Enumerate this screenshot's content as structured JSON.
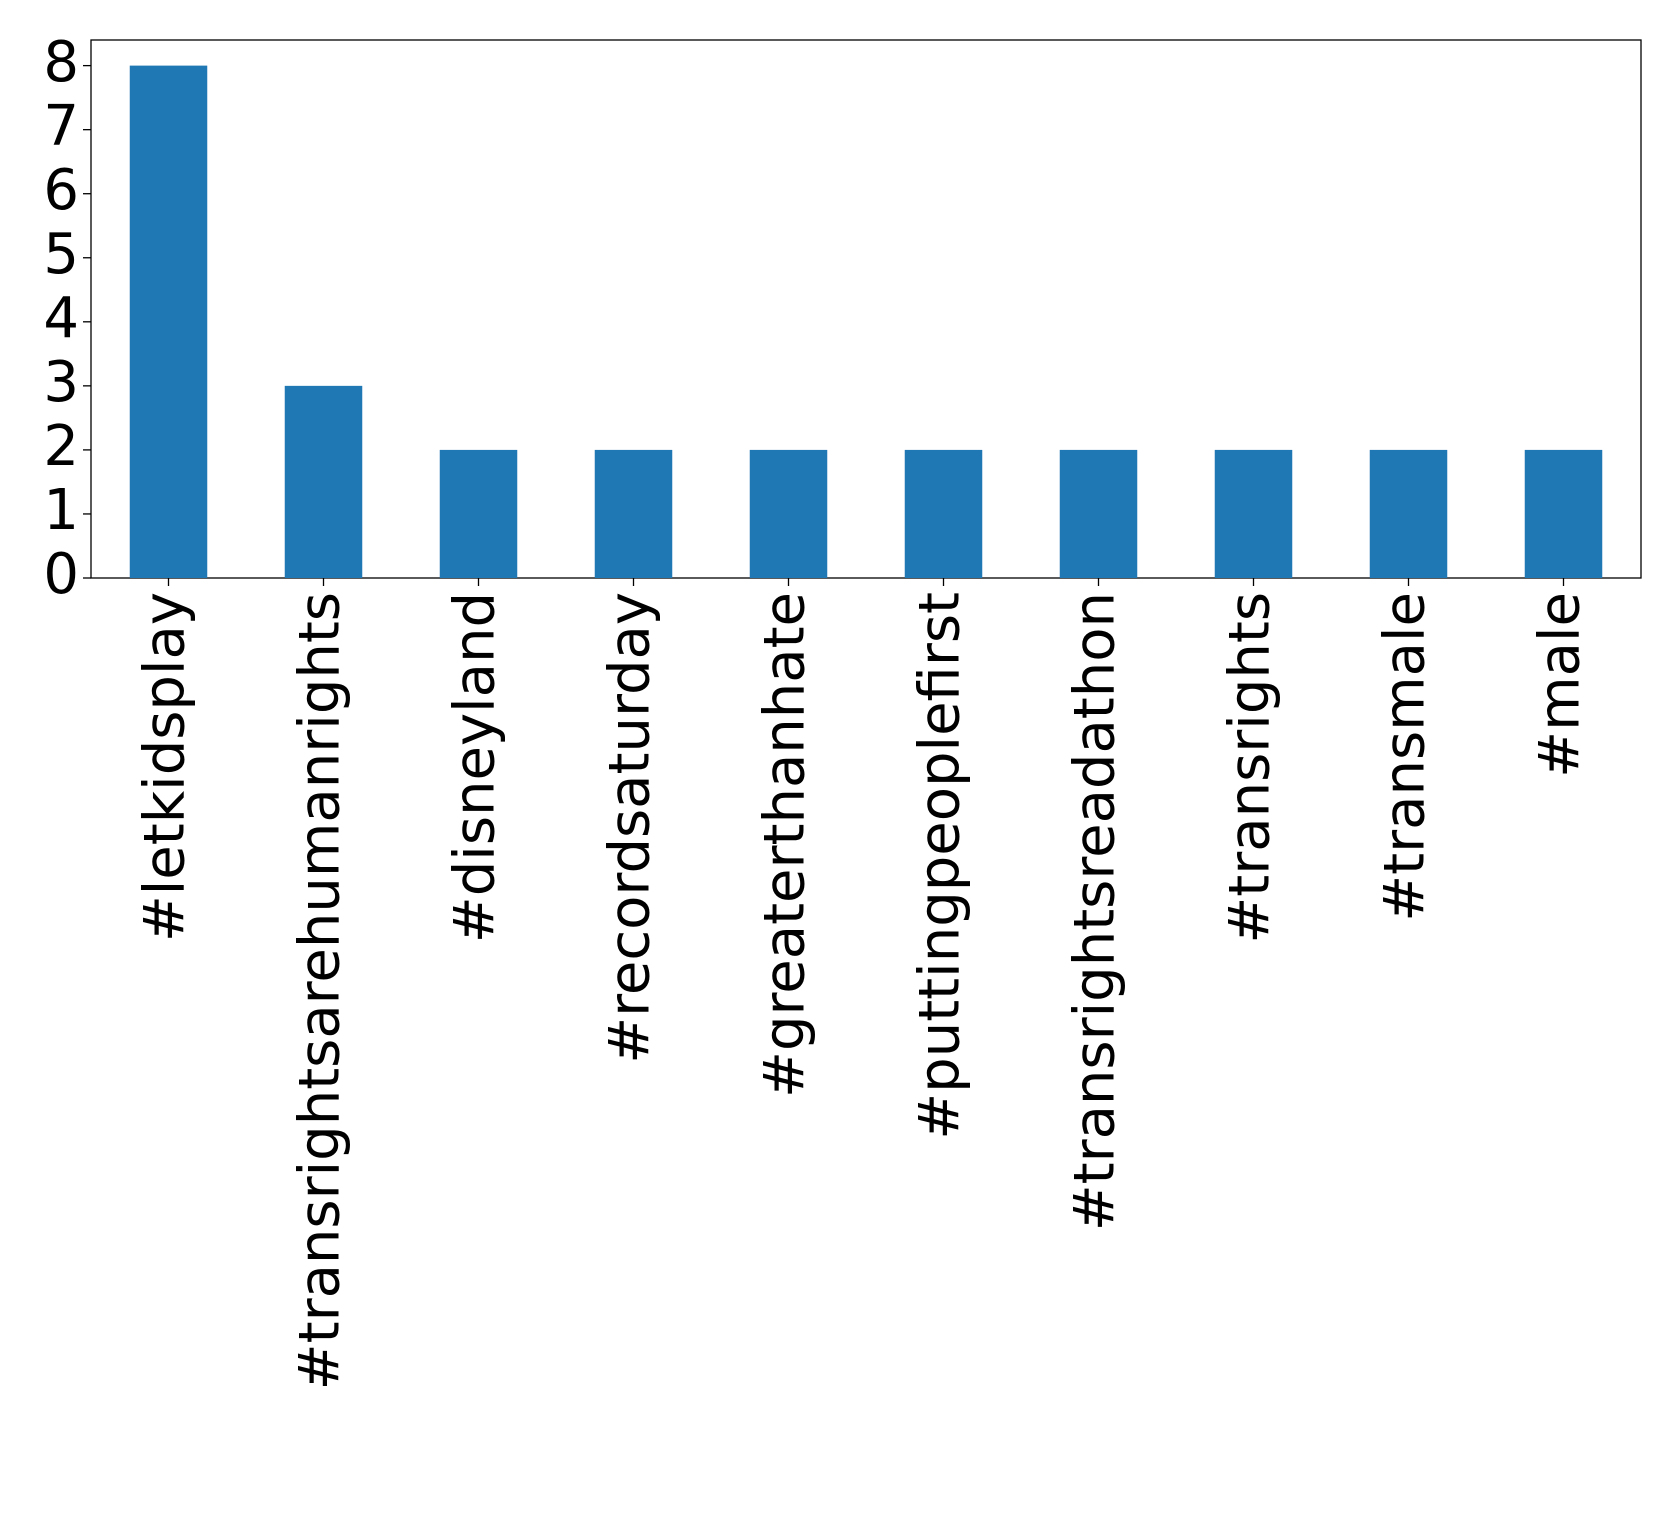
{
  "chart_data": {
    "type": "bar",
    "categories": [
      "#letkidsplay",
      "#transrightsarehumanrights",
      "#disneyland",
      "#recordsaturday",
      "#greaterthanhate",
      "#puttingpeoplefirst",
      "#transrightsreadathon",
      "#transrights",
      "#transmale",
      "#male"
    ],
    "values": [
      8,
      3,
      2,
      2,
      2,
      2,
      2,
      2,
      2,
      2
    ],
    "color": "#1f77b4",
    "ylim": [
      0,
      8.4
    ],
    "yticks": [
      0,
      1,
      2,
      3,
      4,
      5,
      6,
      7,
      8
    ],
    "grid": false
  }
}
